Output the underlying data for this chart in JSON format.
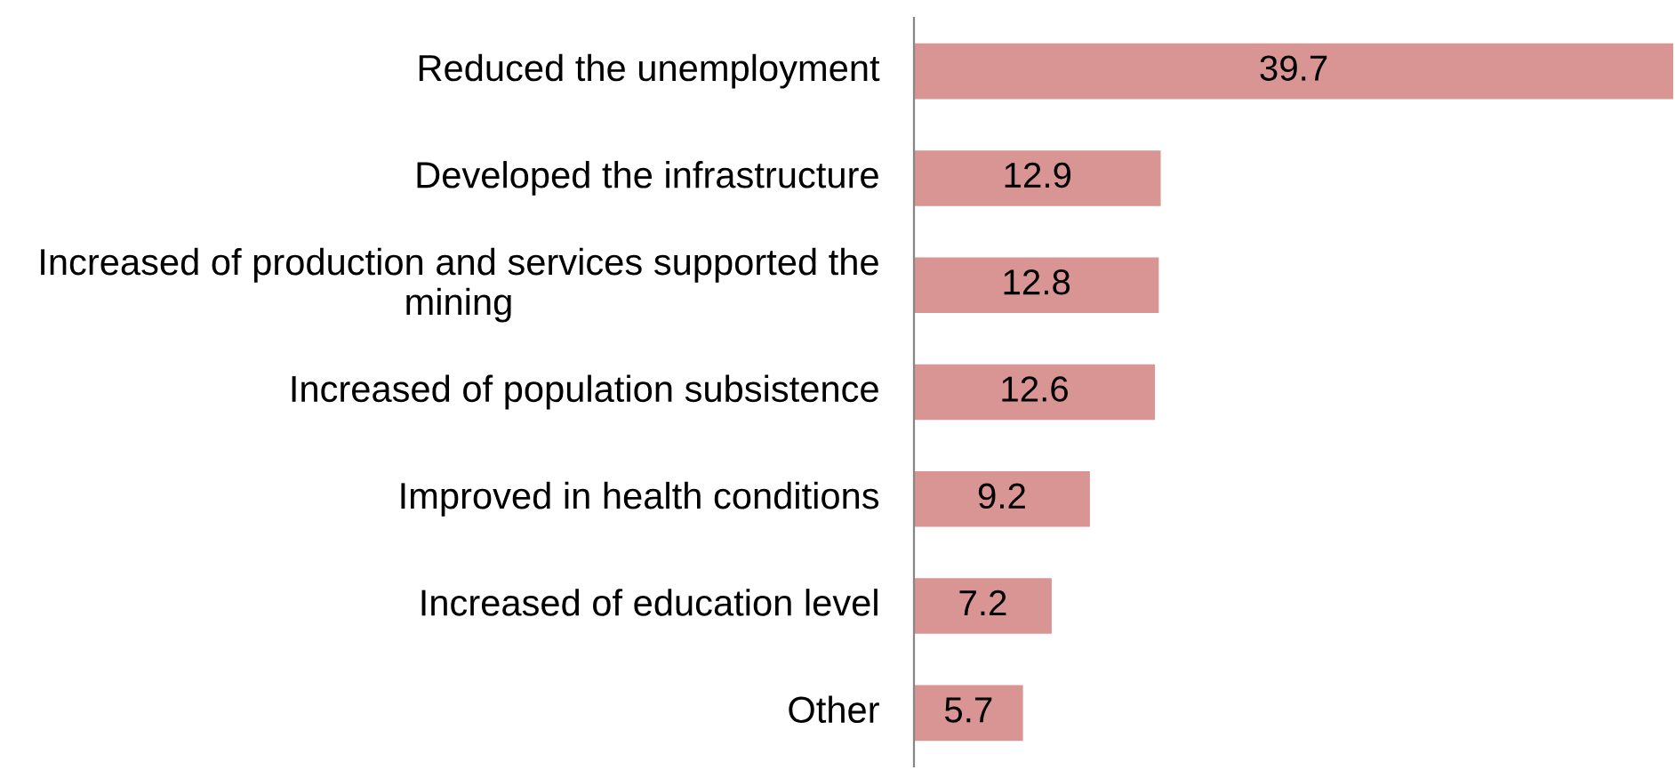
{
  "chart_data": {
    "type": "bar",
    "orientation": "horizontal",
    "categories": [
      "Reduced the unemployment",
      "Developed the infrastructure",
      "Increased of production and services supported the mining",
      "Increased of population subsistence",
      "Improved in health conditions",
      "Increased of education level",
      "Other"
    ],
    "values": [
      39.7,
      12.9,
      12.8,
      12.6,
      9.2,
      7.2,
      5.7
    ],
    "color": "#d99594",
    "data_labels": true,
    "grid": false,
    "legend": false
  }
}
